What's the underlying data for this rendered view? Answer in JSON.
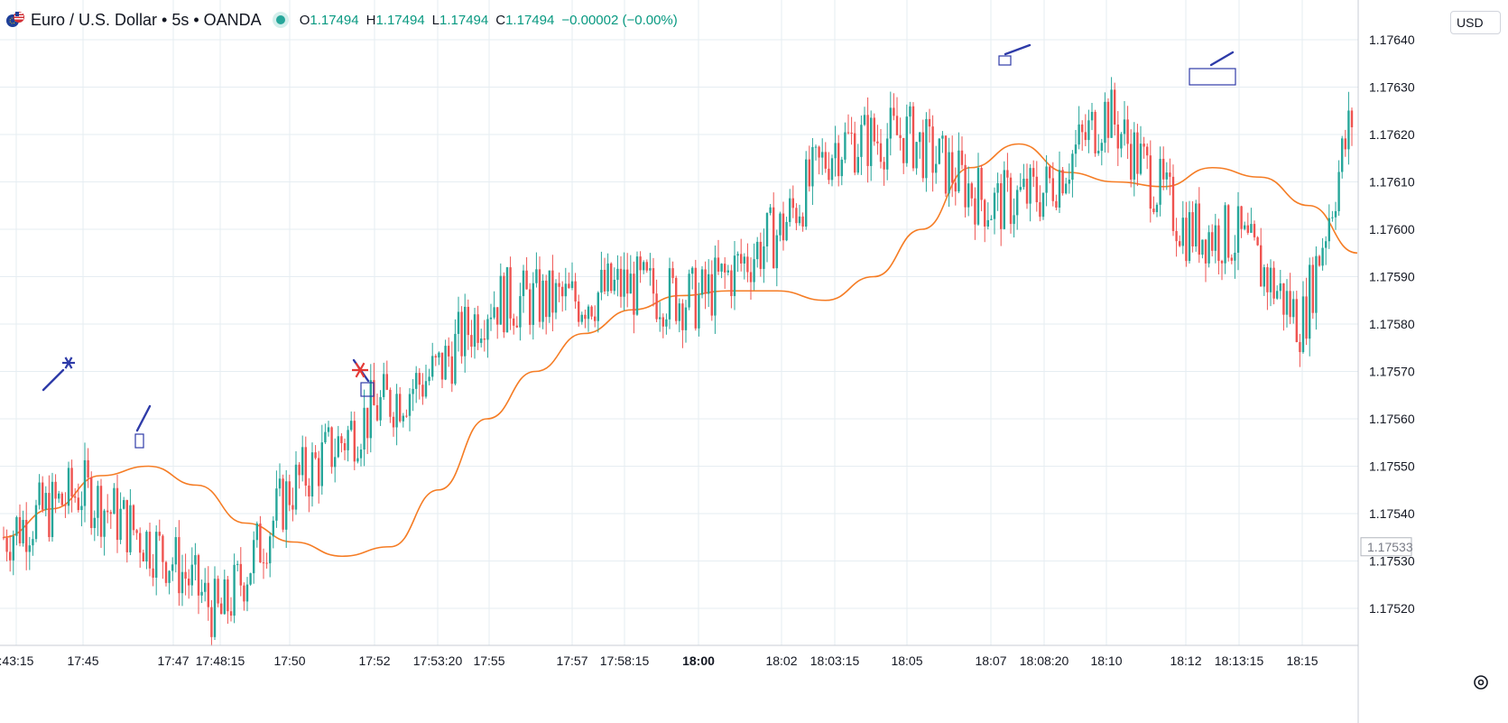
{
  "header": {
    "title": "Euro / U.S. Dollar • 5s • OANDA",
    "ohlc": [
      {
        "key": "O",
        "value": "1.17494"
      },
      {
        "key": "H",
        "value": "1.17494"
      },
      {
        "key": "L",
        "value": "1.17494"
      },
      {
        "key": "C",
        "value": "1.17494"
      }
    ],
    "change": "−0.00002 (−0.00%)"
  },
  "currency": "USD",
  "settings_icon": "gear-icon",
  "colors": {
    "up": "#26a69a",
    "down": "#ef5350",
    "ma": "#f57c24",
    "annotation": "#2e3ba8",
    "star_red": "#e53935"
  },
  "chart_data": {
    "type": "candlestick",
    "symbol": "EURUSD",
    "interval": "5s",
    "ylim": [
      1.1751,
      1.17642
    ],
    "y_ticks": [
      "1.17640",
      "1.17630",
      "1.17620",
      "1.17610",
      "1.17600",
      "1.17590",
      "1.17580",
      "1.17570",
      "1.17560",
      "1.17550",
      "1.17540",
      "1.17530",
      "1.17520"
    ],
    "x_ticks": [
      ":43:15",
      "17:45",
      "17:47",
      "17:48:15",
      "17:50",
      "17:52",
      "17:53:20",
      "17:55",
      "17:57",
      "17:58:15",
      "18:00",
      "18:02",
      "18:03:15",
      "18:05",
      "18:07",
      "18:08:20",
      "18:10",
      "18:12",
      "18:13:15",
      "18:15"
    ],
    "x_tick_bold": "18:00",
    "last_price_label": "1.17533",
    "ma_series": [
      1.17535,
      1.17541,
      1.17548,
      1.1755,
      1.17546,
      1.17538,
      1.17534,
      1.17531,
      1.17533,
      1.17545,
      1.1756,
      1.1757,
      1.17578,
      1.17583,
      1.17586,
      1.17587,
      1.17587,
      1.17585,
      1.1759,
      1.176,
      1.17613,
      1.17618,
      1.17612,
      1.1761,
      1.17609,
      1.17613,
      1.17611,
      1.17605,
      1.17595
    ],
    "key_points": [
      {
        "x": ":43:15",
        "close": 1.17537
      },
      {
        "x": "17:45",
        "close": 1.17545
      },
      {
        "x": "17:47",
        "close": 1.1753
      },
      {
        "x": "17:48:15",
        "close": 1.17518
      },
      {
        "x": "17:50",
        "close": 1.17545
      },
      {
        "x": "17:52",
        "close": 1.17562
      },
      {
        "x": "17:53:20",
        "close": 1.1757
      },
      {
        "x": "17:55",
        "close": 1.17585
      },
      {
        "x": "17:57",
        "close": 1.17585
      },
      {
        "x": "17:58:15",
        "close": 1.17588
      },
      {
        "x": "18:00",
        "close": 1.17585
      },
      {
        "x": "18:02",
        "close": 1.176
      },
      {
        "x": "18:03:15",
        "close": 1.17618
      },
      {
        "x": "18:05",
        "close": 1.1762
      },
      {
        "x": "18:07",
        "close": 1.17605
      },
      {
        "x": "18:08:20",
        "close": 1.17608
      },
      {
        "x": "18:10",
        "close": 1.17625
      },
      {
        "x": "18:12",
        "close": 1.176
      },
      {
        "x": "18:13:15",
        "close": 1.17598
      },
      {
        "x": "18:15",
        "close": 1.1758
      }
    ],
    "annotations": [
      {
        "type": "trend-line",
        "color": "blue"
      },
      {
        "type": "star",
        "color": "blue"
      },
      {
        "type": "trend-line",
        "color": "blue"
      },
      {
        "type": "box",
        "color": "blue"
      },
      {
        "type": "star",
        "color": "red"
      },
      {
        "type": "box",
        "color": "blue"
      },
      {
        "type": "trend-line",
        "color": "blue"
      },
      {
        "type": "box",
        "color": "blue"
      },
      {
        "type": "trend-line",
        "color": "blue"
      },
      {
        "type": "box",
        "color": "blue"
      }
    ]
  }
}
